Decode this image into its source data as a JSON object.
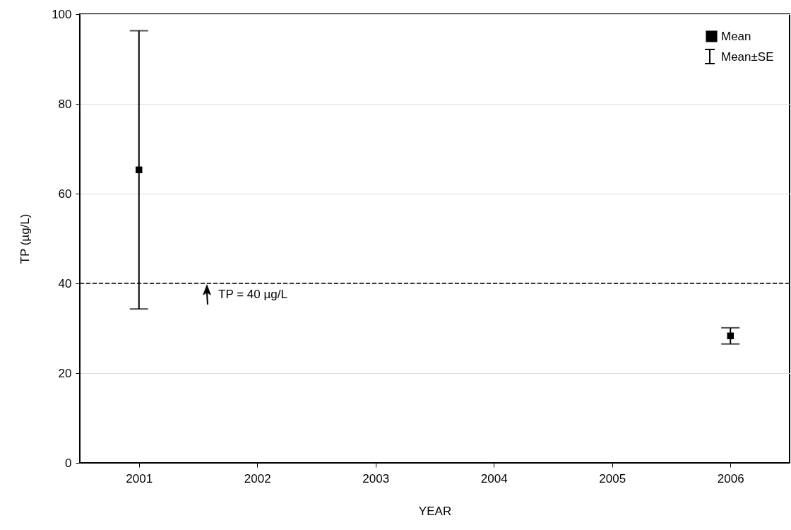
{
  "chart_data": {
    "type": "scatter",
    "xlabel": "YEAR",
    "ylabel": "TP (µg/L)",
    "categories": [
      "2001",
      "2002",
      "2003",
      "2004",
      "2005",
      "2006"
    ],
    "series": [
      {
        "name": "Mean",
        "color": "#000000",
        "values": [
          65.3,
          null,
          null,
          null,
          null,
          28.3
        ],
        "errors": [
          31,
          null,
          null,
          null,
          null,
          1.8
        ]
      }
    ],
    "ylim": [
      0,
      100
    ],
    "yticks": [
      0,
      20,
      40,
      60,
      80,
      100
    ],
    "grid": "y",
    "legend": "top right",
    "marker": "square",
    "ref_lines": [
      {
        "axis": "y",
        "value": 40,
        "label": "TP = 40 µg/L",
        "line_style": "dashed",
        "color": "#000000"
      }
    ],
    "annotations": [
      "Mean±SE"
    ]
  }
}
